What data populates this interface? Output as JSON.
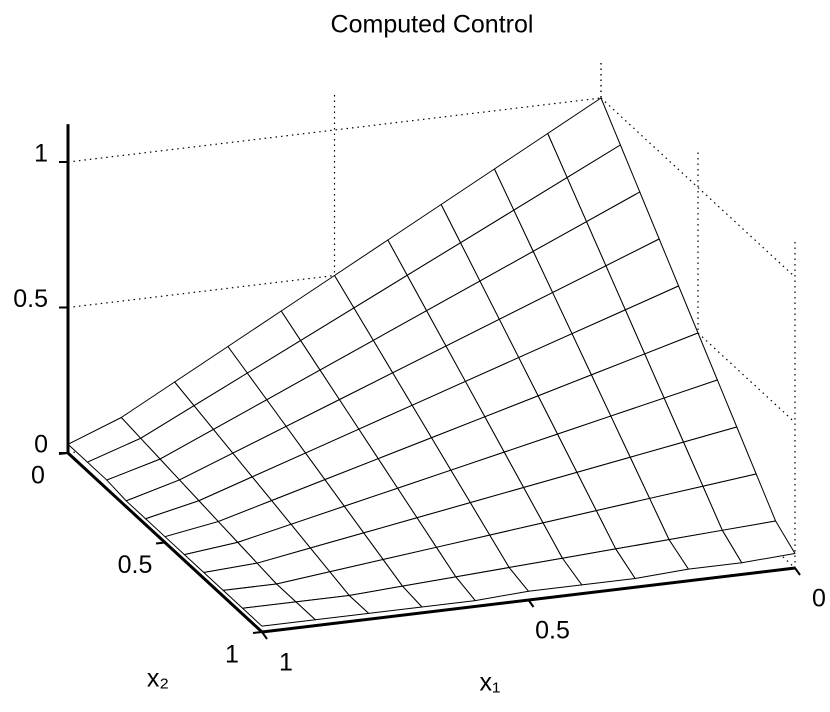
{
  "chart_data": {
    "type": "surface",
    "title": "Computed Control",
    "xlabel": "x₁",
    "ylabel": "x₂",
    "x": [
      0,
      0.1,
      0.2,
      0.3,
      0.4,
      0.5,
      0.6,
      0.7,
      0.8,
      0.9,
      1
    ],
    "y": [
      0,
      0.1,
      0.2,
      0.3,
      0.4,
      0.5,
      0.6,
      0.7,
      0.8,
      0.9,
      1
    ],
    "z": [
      [
        1,
        0.9,
        0.8,
        0.7,
        0.6,
        0.5,
        0.4,
        0.3,
        0.2,
        0.1,
        0.03
      ],
      [
        0.9,
        0.81,
        0.72,
        0.63,
        0.54,
        0.45,
        0.36,
        0.27,
        0.18,
        0.09,
        0.03
      ],
      [
        0.8,
        0.72,
        0.64,
        0.56,
        0.48,
        0.4,
        0.32,
        0.24,
        0.16,
        0.08,
        0.03
      ],
      [
        0.7,
        0.63,
        0.56,
        0.49,
        0.42,
        0.35,
        0.28,
        0.21,
        0.14,
        0.07,
        0.02
      ],
      [
        0.6,
        0.54,
        0.48,
        0.42,
        0.36,
        0.3,
        0.24,
        0.18,
        0.12,
        0.06,
        0.02
      ],
      [
        0.5,
        0.45,
        0.4,
        0.35,
        0.3,
        0.25,
        0.2,
        0.15,
        0.1,
        0.05,
        0.02
      ],
      [
        0.4,
        0.36,
        0.32,
        0.28,
        0.24,
        0.2,
        0.16,
        0.12,
        0.08,
        0.04,
        0.02
      ],
      [
        0.3,
        0.27,
        0.24,
        0.21,
        0.18,
        0.15,
        0.12,
        0.09,
        0.06,
        0.03,
        0.02
      ],
      [
        0.2,
        0.18,
        0.16,
        0.14,
        0.12,
        0.1,
        0.08,
        0.06,
        0.04,
        0.02,
        0.02
      ],
      [
        0.1,
        0.09,
        0.08,
        0.07,
        0.06,
        0.05,
        0.04,
        0.03,
        0.02,
        0.02,
        0.02
      ],
      [
        0.05,
        0.04,
        0.04,
        0.03,
        0.03,
        0.03,
        0.02,
        0.02,
        0.02,
        0.02,
        0.02
      ]
    ],
    "xlim": [
      0,
      1
    ],
    "ylim": [
      0,
      1
    ],
    "zlim": [
      0,
      1.13
    ],
    "xticks": [
      0,
      0.5,
      1
    ],
    "yticks": [
      0,
      0.5,
      1
    ],
    "zticks": [
      0,
      0.5,
      1
    ],
    "grid": true,
    "color": "#ffffff"
  }
}
